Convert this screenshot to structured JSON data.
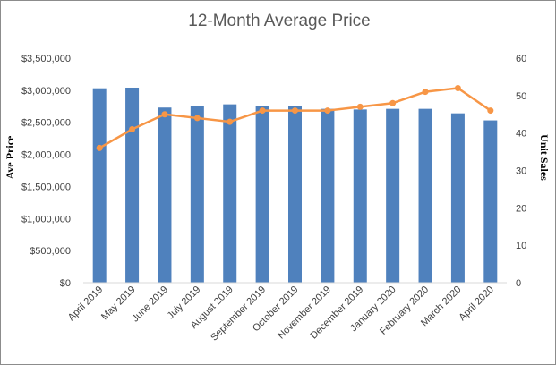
{
  "chart_data": {
    "type": "bar",
    "title": "12-Month Average Price",
    "categories": [
      "April 2019",
      "May 2019",
      "June 2019",
      "July 2019",
      "August 2019",
      "September 2019",
      "October 2019",
      "November 2019",
      "December 2019",
      "January 2020",
      "February 2020",
      "March 2020",
      "April 2020"
    ],
    "series": [
      {
        "name": "Ave Price",
        "type": "bar",
        "axis": "left",
        "color": "#4f81bd",
        "values": [
          3030000,
          3040000,
          2730000,
          2760000,
          2780000,
          2760000,
          2760000,
          2710000,
          2700000,
          2710000,
          2710000,
          2640000,
          2530000
        ]
      },
      {
        "name": "Unit Sales",
        "type": "line",
        "axis": "right",
        "color": "#f79646",
        "values": [
          36,
          41,
          45,
          44,
          43,
          46,
          46,
          46,
          47,
          48,
          51,
          52,
          46
        ]
      }
    ],
    "ylabel": "Ave Price",
    "y2label": "Unit Sales",
    "ylim": [
      0,
      3500000
    ],
    "y2lim": [
      0,
      60
    ],
    "yticks": [
      "$0",
      "$500,000",
      "$1,000,000",
      "$1,500,000",
      "$2,000,000",
      "$2,500,000",
      "$3,000,000",
      "$3,500,000"
    ],
    "y2ticks": [
      "0",
      "10",
      "20",
      "30",
      "40",
      "50",
      "60"
    ],
    "grid": false,
    "legend": "none"
  }
}
